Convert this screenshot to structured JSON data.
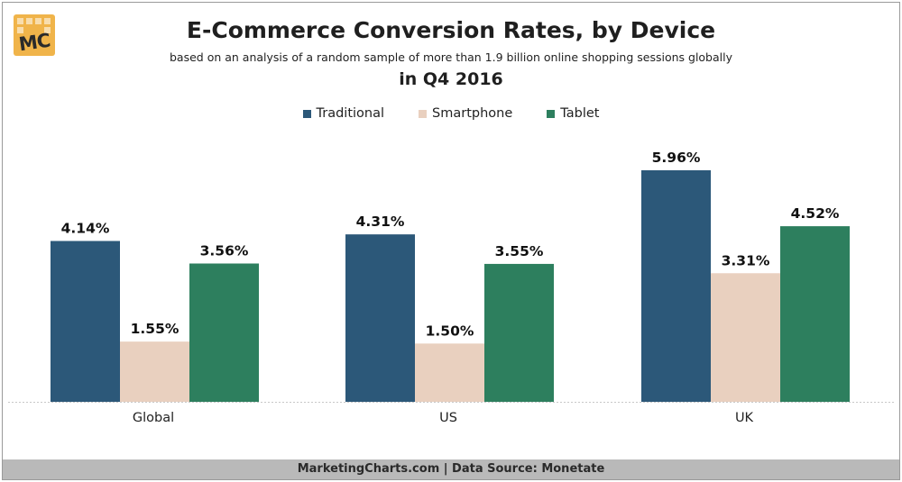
{
  "logo": {
    "text": "MC"
  },
  "chart_data": {
    "type": "bar",
    "title": "E-Commerce Conversion Rates, by Device",
    "subtitle": "based on an analysis of a random sample of more than 1.9 billion online shopping sessions globally",
    "subtitle2": "in Q4 2016",
    "categories": [
      "Global",
      "US",
      "UK"
    ],
    "series": [
      {
        "name": "Traditional",
        "color": "#2c5879",
        "values": [
          4.14,
          4.31,
          5.96
        ],
        "labels": [
          "4.14%",
          "4.31%",
          "5.96%"
        ]
      },
      {
        "name": "Smartphone",
        "color": "#e9d0bf",
        "values": [
          1.55,
          1.5,
          3.31
        ],
        "labels": [
          "1.55%",
          "1.50%",
          "3.31%"
        ]
      },
      {
        "name": "Tablet",
        "color": "#2d7f5e",
        "values": [
          3.56,
          3.55,
          4.52
        ],
        "labels": [
          "3.56%",
          "3.55%",
          "4.52%"
        ]
      }
    ],
    "ylim": [
      0,
      5.96
    ],
    "grid": false,
    "legend": "top-center",
    "xlabel": "",
    "ylabel": ""
  },
  "footer": {
    "text": "MarketingCharts.com | Data Source: Monetate"
  }
}
